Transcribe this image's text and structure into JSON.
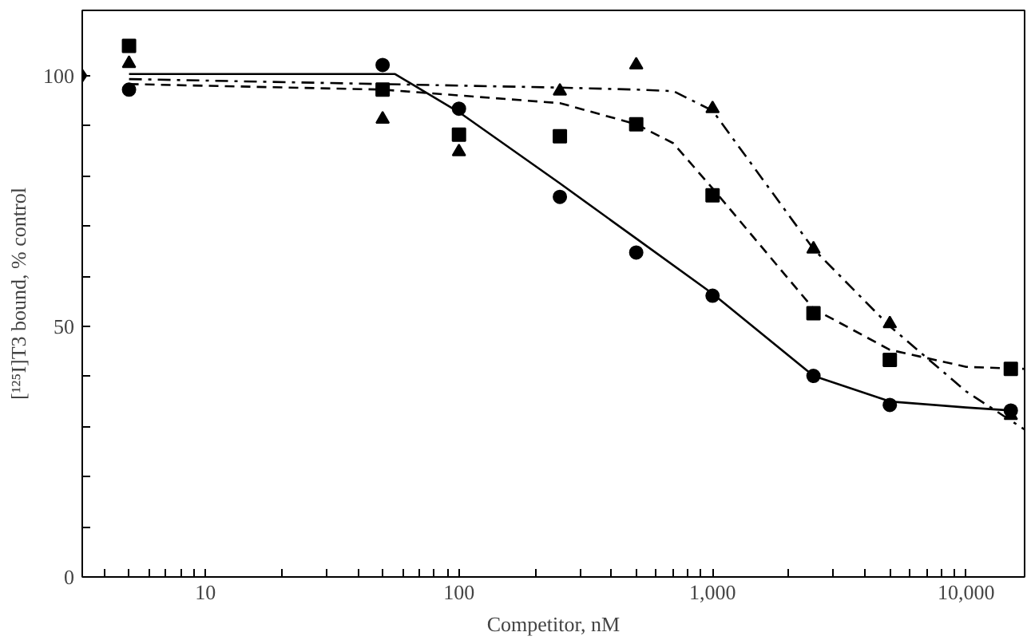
{
  "chart_data": {
    "type": "scatter",
    "xlabel": "Competitor, nM",
    "ylabel": "[¹²⁵I]T3 bound, % control",
    "log": "x",
    "grid": false,
    "xlim": [
      3.27,
      17000
    ],
    "ylim": [
      0,
      113
    ],
    "xticks": [
      {
        "value": 4,
        "label": null
      },
      {
        "value": 5,
        "label": null
      },
      {
        "value": 6,
        "label": null
      },
      {
        "value": 7,
        "label": null
      },
      {
        "value": 8,
        "label": null
      },
      {
        "value": 9,
        "label": null
      },
      10,
      {
        "value": 20,
        "label": null
      },
      {
        "value": 30,
        "label": null
      },
      {
        "value": 40,
        "label": null
      },
      {
        "value": 50,
        "label": null
      },
      {
        "value": 60,
        "label": null
      },
      {
        "value": 70,
        "label": null
      },
      {
        "value": 80,
        "label": null
      },
      {
        "value": 90,
        "label": null
      },
      100,
      {
        "value": 200,
        "label": null
      },
      {
        "value": 300,
        "label": null
      },
      {
        "value": 400,
        "label": null
      },
      {
        "value": 500,
        "label": null
      },
      {
        "value": 600,
        "label": null
      },
      {
        "value": 700,
        "label": null
      },
      {
        "value": 800,
        "label": null
      },
      {
        "value": 900,
        "label": null
      },
      {
        "value": 1000,
        "label": "1,000"
      },
      {
        "value": 2000,
        "label": null
      },
      {
        "value": 3000,
        "label": null
      },
      {
        "value": 4000,
        "label": null
      },
      {
        "value": 5000,
        "label": null
      },
      {
        "value": 6000,
        "label": null
      },
      {
        "value": 7000,
        "label": null
      },
      {
        "value": 8000,
        "label": null
      },
      {
        "value": 9000,
        "label": null
      },
      {
        "value": 10000,
        "label": "10,000"
      }
    ],
    "yticks": [
      0,
      {
        "value": 10,
        "label": null
      },
      {
        "value": 20,
        "label": null
      },
      {
        "value": 30,
        "label": null
      },
      {
        "value": 40,
        "label": null
      },
      50,
      {
        "value": 60,
        "label": null
      },
      {
        "value": 70,
        "label": null
      },
      {
        "value": 80,
        "label": null
      },
      {
        "value": 90,
        "label": null
      },
      100
    ],
    "series": [
      {
        "marker": "circle",
        "color": "#000000",
        "x": [
          5,
          50,
          100,
          250,
          500,
          1000,
          2500,
          5000,
          15000
        ],
        "values": [
          97.2,
          102.1,
          93.4,
          75.8,
          64.7,
          56.1,
          40.1,
          34.3,
          33.2
        ]
      },
      {
        "marker": "square",
        "color": "#000000",
        "x": [
          5,
          50,
          100,
          250,
          500,
          1000,
          2500,
          5000,
          15000
        ],
        "values": [
          105.9,
          97.2,
          88.2,
          87.9,
          90.3,
          76.1,
          52.6,
          43.3,
          41.5
        ]
      },
      {
        "marker": "triangle",
        "color": "#000000",
        "x": [
          5,
          50,
          100,
          250,
          500,
          1000,
          2500,
          5000,
          15000
        ],
        "values": [
          102.4,
          91.3,
          84.8,
          96.9,
          102.1,
          93.4,
          65.4,
          50.5,
          32.2
        ]
      },
      {
        "marker": "diamond",
        "color": "#000000",
        "x": [
          3.27
        ],
        "values": [
          100
        ]
      },
      {
        "type": "line",
        "line_style": "solid",
        "color": "#000000",
        "x": [
          5,
          56,
          100,
          250,
          500,
          1000,
          2500,
          5000,
          10000,
          15000
        ],
        "values": [
          100.3,
          100.3,
          92.7,
          78.5,
          67.5,
          56.5,
          40.1,
          35.0,
          33.8,
          33.2
        ]
      },
      {
        "type": "line",
        "line_style": "dashed",
        "color": "#000000",
        "x": [
          5,
          50,
          250,
          500,
          700,
          1000,
          2500,
          5000,
          10000,
          17000
        ],
        "values": [
          98.3,
          97.2,
          94.5,
          90.3,
          86.5,
          77.5,
          53.5,
          45.3,
          41.9,
          41.5
        ]
      },
      {
        "type": "line",
        "line_style": "dashdot",
        "color": "#000000",
        "x": [
          5,
          250,
          500,
          700,
          1000,
          2500,
          5000,
          10000,
          17000
        ],
        "values": [
          99.3,
          97.6,
          97.2,
          96.9,
          93.0,
          65.4,
          50.0,
          37.0,
          29.4
        ]
      }
    ]
  }
}
